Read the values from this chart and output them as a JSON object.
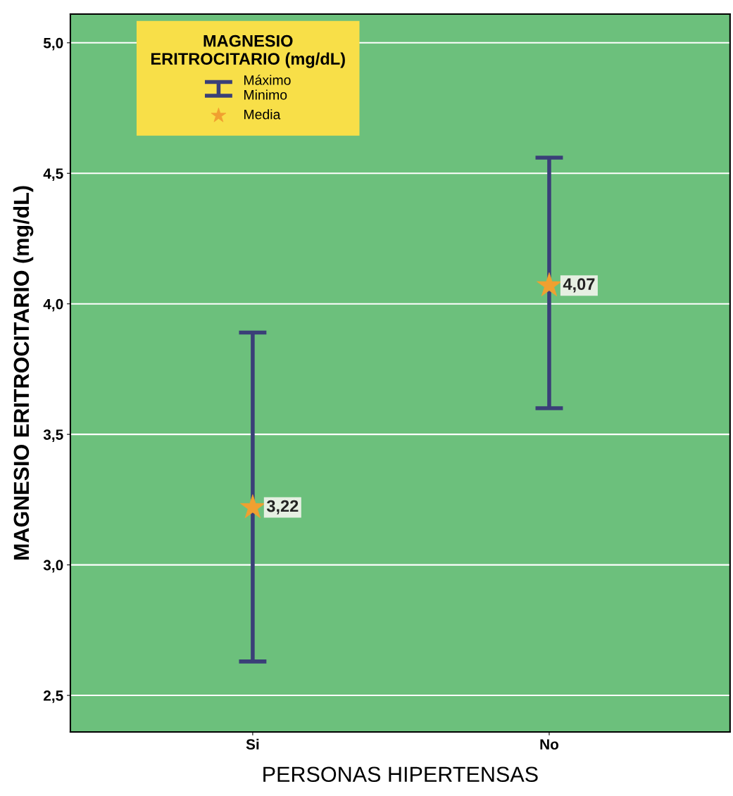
{
  "chart_data": {
    "type": "scatter",
    "xlabel": "PERSONAS HIPERTENSAS",
    "ylabel": "MAGNESIO ERITROCITARIO (mg/dL)",
    "legend_title": "MAGNESIO\nERITROCITARIO (mg/dL)",
    "categories": [
      "Si",
      "No"
    ],
    "series": [
      {
        "name": "Media",
        "color": "#f0a030",
        "values": [
          3.22,
          4.07
        ],
        "value_labels": [
          "3,22",
          "4,07"
        ],
        "errors": [
          [
            2.63,
            3.89
          ],
          [
            3.6,
            4.56
          ]
        ]
      }
    ],
    "ylim": [
      2.36,
      5.11
    ],
    "yticks": [
      {
        "value": 2.5,
        "label": "2,5"
      },
      {
        "value": 3.0,
        "label": "3,0"
      },
      {
        "value": 3.5,
        "label": "3,5"
      },
      {
        "value": 4.0,
        "label": "4,0"
      },
      {
        "value": 4.5,
        "label": "4,5"
      },
      {
        "value": 5.0,
        "label": "5,0"
      }
    ],
    "annotations": [
      "Máximo\nMinimo"
    ],
    "grid": "y",
    "marker": "star",
    "legend": "top left"
  }
}
